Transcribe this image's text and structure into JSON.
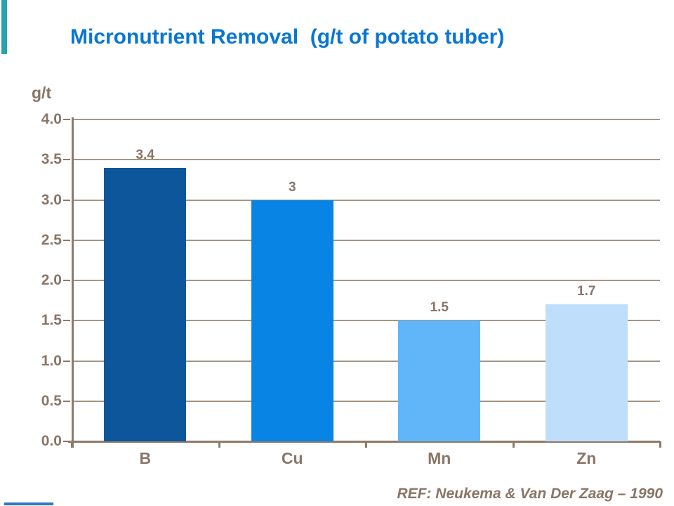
{
  "page": {
    "title": "Micronutrient Removal  (g/t of potato tuber)",
    "reference": "REF: Neukema & Van Der Zaag – 1990"
  },
  "chart_data": {
    "type": "bar",
    "title": "Micronutrient Removal (g/t of potato tuber)",
    "categories": [
      "B",
      "Cu",
      "Mn",
      "Zn"
    ],
    "values": [
      3.4,
      3,
      1.5,
      1.7
    ],
    "value_labels": [
      "3.4",
      "3",
      "1.5",
      "1.7"
    ],
    "bar_colors": [
      "#0E569B",
      "#0884E4",
      "#60B6F8",
      "#BFDEFB"
    ],
    "xlabel": "",
    "ylabel": "g/t",
    "ylim": [
      0,
      4
    ],
    "ytick_step": 0.5,
    "ytick_labels": [
      "4.0",
      "3.5",
      "3.0",
      "2.5",
      "2.0",
      "1.5",
      "1.0",
      "0.5",
      "0.0"
    ],
    "grid": true,
    "legend": false
  },
  "colors": {
    "title_blue": "#0877D0",
    "text_taupe": "#8A7566",
    "gridline": "#A79480",
    "axis": "#8D7A68",
    "deco_teal": "#2BA0AA",
    "deco_blue": "#2E77C8"
  }
}
